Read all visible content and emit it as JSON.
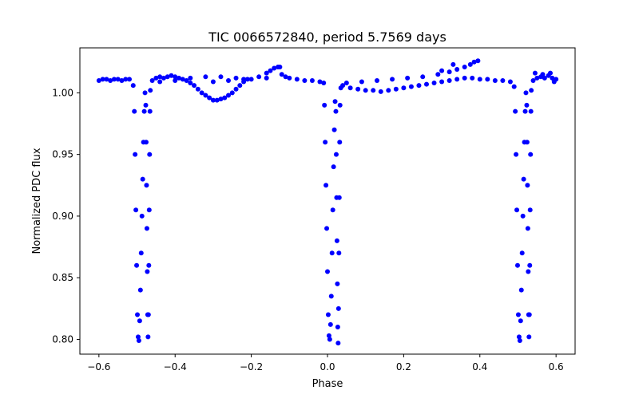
{
  "chart_data": {
    "type": "scatter",
    "title": "TIC 0066572840, period 5.7569 days",
    "xlabel": "Phase",
    "ylabel": "Normalized PDC flux",
    "xlim": [
      -0.65,
      0.65
    ],
    "ylim": [
      0.788,
      1.0365
    ],
    "x_ticks": [
      -0.6,
      -0.4,
      -0.2,
      0.0,
      0.2,
      0.4,
      0.6
    ],
    "x_tick_labels": [
      "−0.6",
      "−0.4",
      "−0.2",
      "0.0",
      "0.2",
      "0.4",
      "0.6"
    ],
    "y_ticks": [
      0.8,
      0.85,
      0.9,
      0.95,
      1.0
    ],
    "y_tick_labels": [
      "0.80",
      "0.85",
      "0.90",
      "0.95",
      "1.00"
    ],
    "grid": false,
    "marker_color": "#0000ff",
    "series": [
      {
        "points": [
          [
            -0.6,
            1.01
          ],
          [
            -0.59,
            1.011
          ],
          [
            -0.58,
            1.011
          ],
          [
            -0.57,
            1.01
          ],
          [
            -0.56,
            1.011
          ],
          [
            -0.55,
            1.011
          ],
          [
            -0.54,
            1.01
          ],
          [
            -0.53,
            1.011
          ],
          [
            -0.52,
            1.011
          ],
          [
            -0.51,
            1.006
          ],
          [
            -0.507,
            0.985
          ],
          [
            -0.505,
            0.95
          ],
          [
            -0.503,
            0.905
          ],
          [
            -0.501,
            0.86
          ],
          [
            -0.499,
            0.82
          ],
          [
            -0.497,
            0.802
          ],
          [
            -0.495,
            0.799
          ],
          [
            -0.493,
            0.815
          ],
          [
            -0.491,
            0.84
          ],
          [
            -0.489,
            0.87
          ],
          [
            -0.487,
            0.9
          ],
          [
            -0.485,
            0.93
          ],
          [
            -0.483,
            0.96
          ],
          [
            -0.481,
            0.985
          ],
          [
            -0.479,
            1.0
          ],
          [
            -0.477,
            0.99
          ],
          [
            -0.476,
            0.96
          ],
          [
            -0.475,
            0.925
          ],
          [
            -0.474,
            0.89
          ],
          [
            -0.473,
            0.855
          ],
          [
            -0.472,
            0.82
          ],
          [
            -0.471,
            0.802
          ],
          [
            -0.47,
            0.82
          ],
          [
            -0.469,
            0.86
          ],
          [
            -0.468,
            0.905
          ],
          [
            -0.467,
            0.95
          ],
          [
            -0.466,
            0.985
          ],
          [
            -0.465,
            1.002
          ],
          [
            -0.46,
            1.01
          ],
          [
            -0.45,
            1.012
          ],
          [
            -0.44,
            1.013
          ],
          [
            -0.43,
            1.012
          ],
          [
            -0.42,
            1.013
          ],
          [
            -0.41,
            1.014
          ],
          [
            -0.4,
            1.013
          ],
          [
            -0.39,
            1.012
          ],
          [
            -0.38,
            1.011
          ],
          [
            -0.37,
            1.01
          ],
          [
            -0.36,
            1.008
          ],
          [
            -0.35,
            1.006
          ],
          [
            -0.34,
            1.003
          ],
          [
            -0.33,
            1.0
          ],
          [
            -0.32,
            0.998
          ],
          [
            -0.31,
            0.996
          ],
          [
            -0.3,
            0.994
          ],
          [
            -0.29,
            0.994
          ],
          [
            -0.28,
            0.995
          ],
          [
            -0.27,
            0.996
          ],
          [
            -0.26,
            0.998
          ],
          [
            -0.25,
            1.0
          ],
          [
            -0.24,
            1.003
          ],
          [
            -0.23,
            1.006
          ],
          [
            -0.22,
            1.009
          ],
          [
            -0.21,
            1.011
          ],
          [
            -0.44,
            1.009
          ],
          [
            -0.4,
            1.01
          ],
          [
            -0.36,
            1.012
          ],
          [
            -0.32,
            1.013
          ],
          [
            -0.28,
            1.013
          ],
          [
            -0.24,
            1.012
          ],
          [
            -0.2,
            1.011
          ],
          [
            -0.16,
            1.012
          ],
          [
            -0.3,
            1.009
          ],
          [
            -0.26,
            1.01
          ],
          [
            -0.22,
            1.011
          ],
          [
            -0.18,
            1.013
          ],
          [
            -0.16,
            1.016
          ],
          [
            -0.15,
            1.018
          ],
          [
            -0.14,
            1.02
          ],
          [
            -0.13,
            1.021
          ],
          [
            -0.125,
            1.021
          ],
          [
            -0.12,
            1.015
          ],
          [
            -0.11,
            1.013
          ],
          [
            -0.1,
            1.012
          ],
          [
            -0.08,
            1.011
          ],
          [
            -0.06,
            1.01
          ],
          [
            -0.04,
            1.01
          ],
          [
            -0.02,
            1.009
          ],
          [
            -0.01,
            1.008
          ],
          [
            -0.008,
            0.99
          ],
          [
            -0.006,
            0.96
          ],
          [
            -0.004,
            0.925
          ],
          [
            -0.002,
            0.89
          ],
          [
            0.0,
            0.855
          ],
          [
            0.002,
            0.82
          ],
          [
            0.004,
            0.803
          ],
          [
            0.006,
            0.8
          ],
          [
            0.008,
            0.812
          ],
          [
            0.01,
            0.835
          ],
          [
            0.012,
            0.87
          ],
          [
            0.014,
            0.905
          ],
          [
            0.016,
            0.94
          ],
          [
            0.018,
            0.97
          ],
          [
            0.02,
            0.993
          ],
          [
            0.022,
            0.985
          ],
          [
            0.023,
            0.95
          ],
          [
            0.024,
            0.915
          ],
          [
            0.025,
            0.88
          ],
          [
            0.026,
            0.845
          ],
          [
            0.027,
            0.81
          ],
          [
            0.028,
            0.797
          ],
          [
            0.029,
            0.825
          ],
          [
            0.03,
            0.87
          ],
          [
            0.031,
            0.915
          ],
          [
            0.032,
            0.96
          ],
          [
            0.033,
            0.99
          ],
          [
            0.035,
            1.004
          ],
          [
            0.04,
            1.006
          ],
          [
            0.06,
            1.004
          ],
          [
            0.08,
            1.003
          ],
          [
            0.1,
            1.002
          ],
          [
            0.12,
            1.002
          ],
          [
            0.14,
            1.001
          ],
          [
            0.16,
            1.002
          ],
          [
            0.18,
            1.003
          ],
          [
            0.2,
            1.004
          ],
          [
            0.22,
            1.005
          ],
          [
            0.24,
            1.006
          ],
          [
            0.26,
            1.007
          ],
          [
            0.28,
            1.008
          ],
          [
            0.3,
            1.009
          ],
          [
            0.32,
            1.01
          ],
          [
            0.34,
            1.011
          ],
          [
            0.36,
            1.012
          ],
          [
            0.38,
            1.012
          ],
          [
            0.05,
            1.008
          ],
          [
            0.09,
            1.009
          ],
          [
            0.13,
            1.01
          ],
          [
            0.17,
            1.011
          ],
          [
            0.21,
            1.012
          ],
          [
            0.25,
            1.013
          ],
          [
            0.29,
            1.015
          ],
          [
            0.32,
            1.017
          ],
          [
            0.34,
            1.019
          ],
          [
            0.36,
            1.021
          ],
          [
            0.375,
            1.023
          ],
          [
            0.385,
            1.025
          ],
          [
            0.395,
            1.026
          ],
          [
            0.33,
            1.023
          ],
          [
            0.3,
            1.018
          ],
          [
            0.4,
            1.011
          ],
          [
            0.42,
            1.011
          ],
          [
            0.44,
            1.01
          ],
          [
            0.46,
            1.01
          ],
          [
            0.48,
            1.009
          ],
          [
            0.49,
            1.005
          ],
          [
            0.493,
            0.985
          ],
          [
            0.495,
            0.95
          ],
          [
            0.497,
            0.905
          ],
          [
            0.499,
            0.86
          ],
          [
            0.501,
            0.82
          ],
          [
            0.503,
            0.802
          ],
          [
            0.505,
            0.799
          ],
          [
            0.507,
            0.815
          ],
          [
            0.509,
            0.84
          ],
          [
            0.511,
            0.87
          ],
          [
            0.513,
            0.9
          ],
          [
            0.515,
            0.93
          ],
          [
            0.517,
            0.96
          ],
          [
            0.519,
            0.985
          ],
          [
            0.521,
            1.0
          ],
          [
            0.523,
            0.99
          ],
          [
            0.524,
            0.96
          ],
          [
            0.525,
            0.925
          ],
          [
            0.526,
            0.89
          ],
          [
            0.527,
            0.855
          ],
          [
            0.528,
            0.82
          ],
          [
            0.529,
            0.802
          ],
          [
            0.53,
            0.82
          ],
          [
            0.531,
            0.86
          ],
          [
            0.532,
            0.905
          ],
          [
            0.533,
            0.95
          ],
          [
            0.534,
            0.985
          ],
          [
            0.535,
            1.002
          ],
          [
            0.54,
            1.01
          ],
          [
            0.55,
            1.012
          ],
          [
            0.56,
            1.013
          ],
          [
            0.57,
            1.012
          ],
          [
            0.58,
            1.014
          ],
          [
            0.59,
            1.012
          ],
          [
            0.6,
            1.011
          ],
          [
            0.545,
            1.016
          ],
          [
            0.565,
            1.015
          ],
          [
            0.585,
            1.016
          ],
          [
            0.595,
            1.009
          ]
        ]
      }
    ]
  }
}
